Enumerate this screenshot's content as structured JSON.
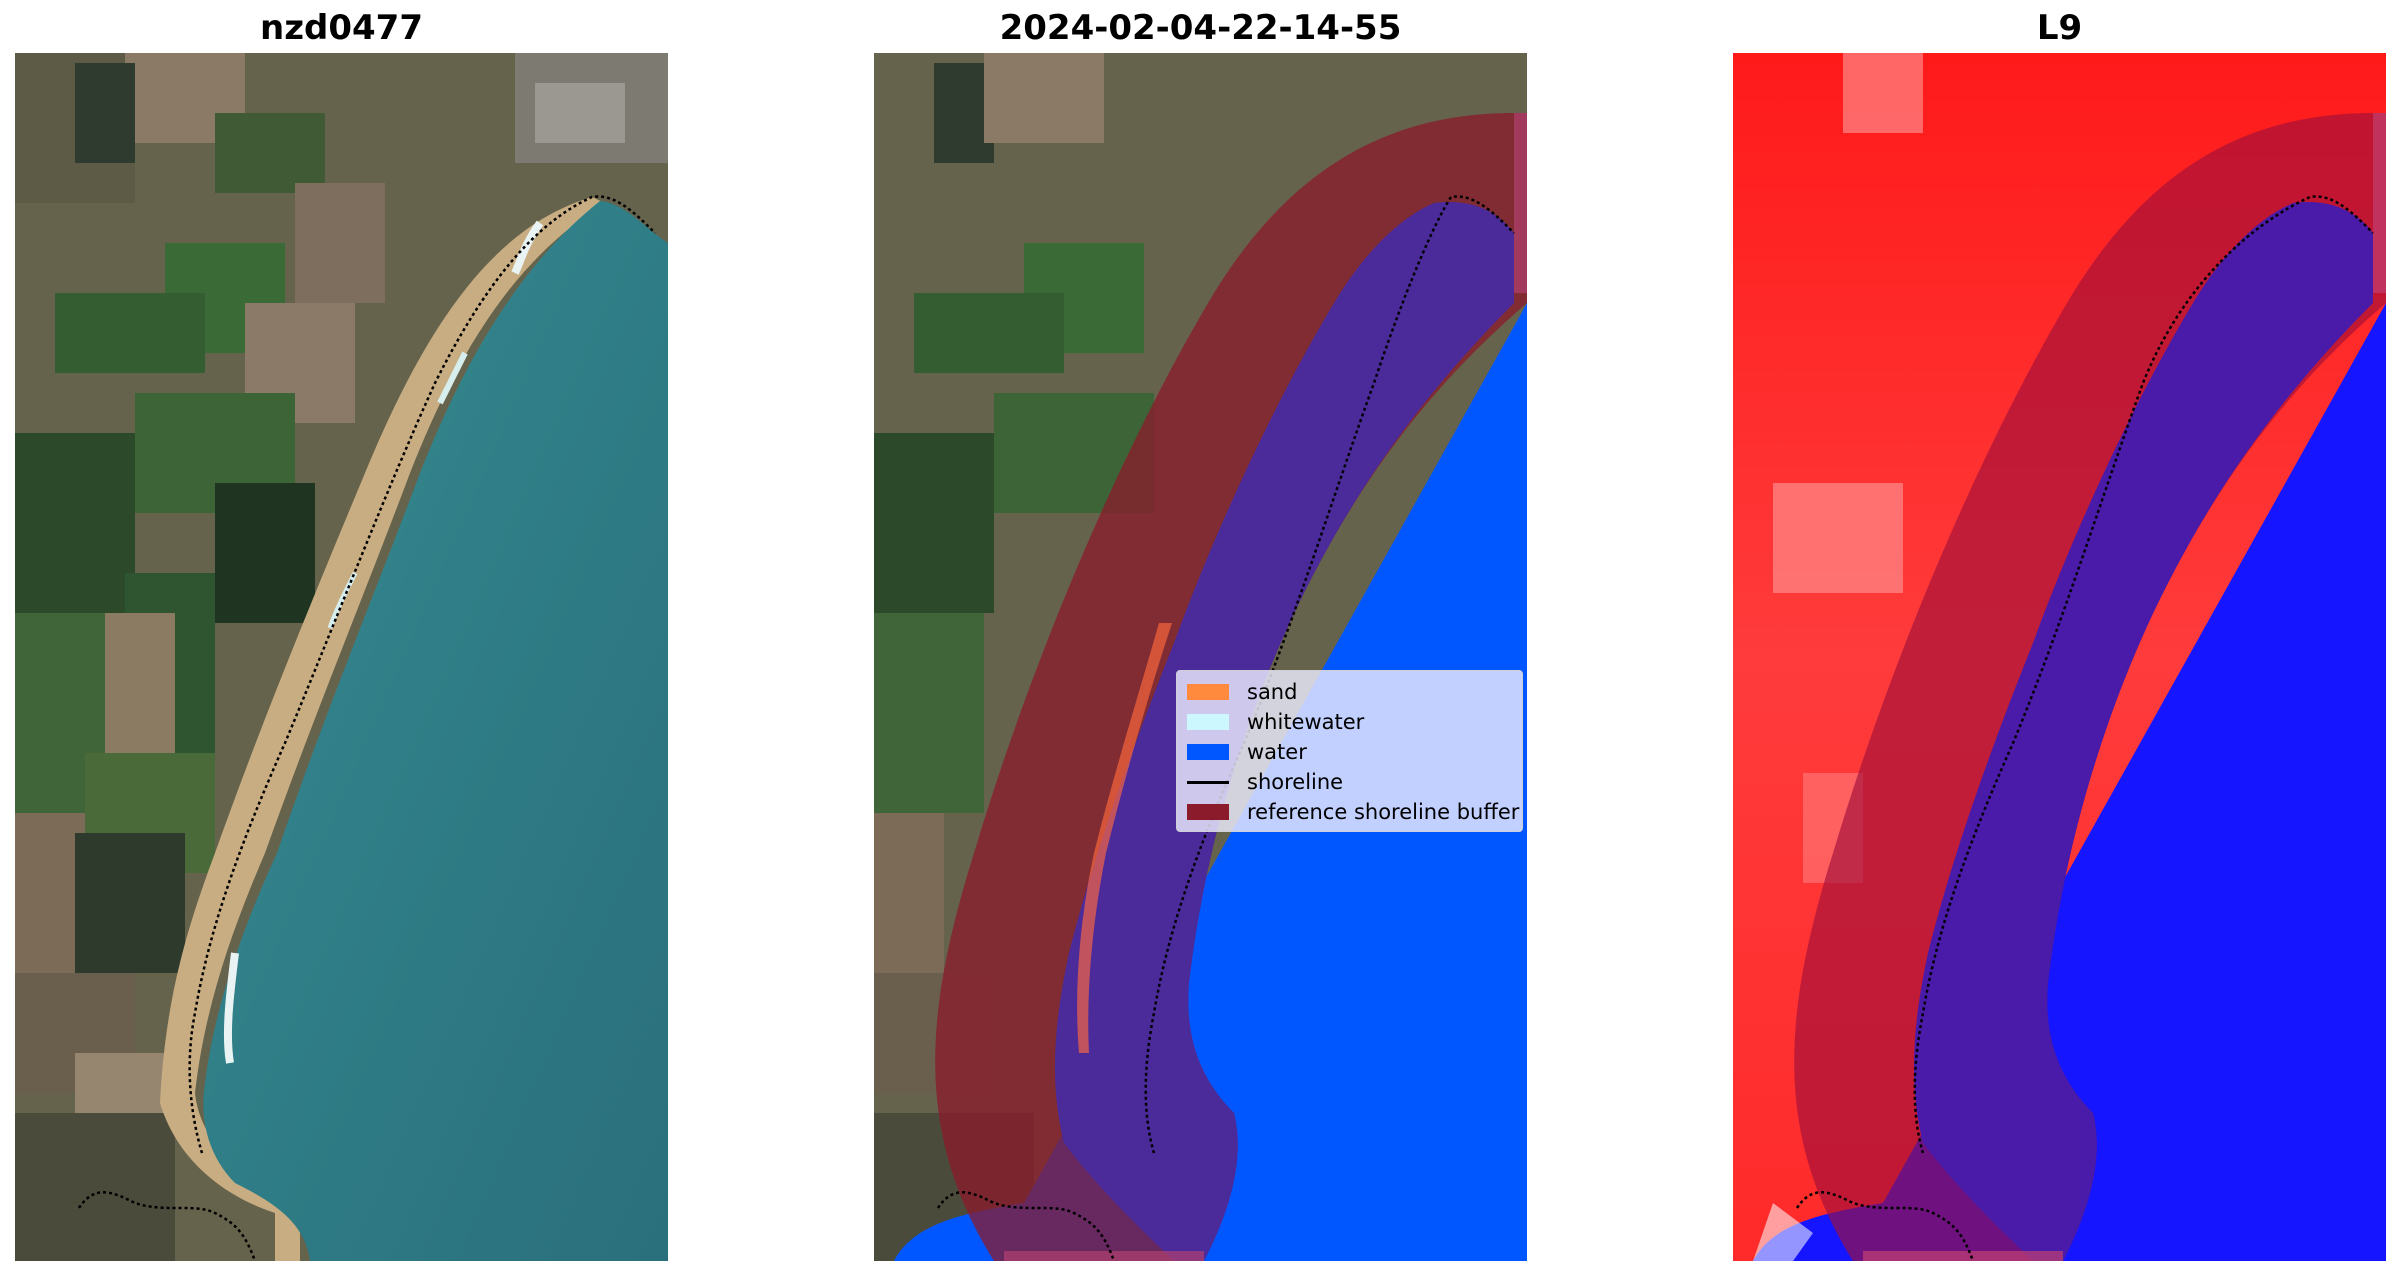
{
  "panels": [
    {
      "title": "nzd0477"
    },
    {
      "title": "2024-02-04-22-14-55"
    },
    {
      "title": "L9"
    }
  ],
  "legend": {
    "entries": [
      {
        "label": "sand",
        "color": "#ff8a3d",
        "kind": "patch"
      },
      {
        "label": "whitewater",
        "color": "#ccf7ff",
        "kind": "patch"
      },
      {
        "label": "water",
        "color": "#0057ff",
        "kind": "patch"
      },
      {
        "label": "shoreline",
        "color": "#000000",
        "kind": "line"
      },
      {
        "label": "reference shoreline buffer",
        "color": "#8b1a2b",
        "kind": "patch"
      }
    ]
  },
  "colors": {
    "land_rgb": "#5e6048",
    "sea_rgb": "#2f7d86",
    "water_class": "#0057ff",
    "buffer": "#8b1a2b",
    "classified_water_in_buffer": "#4b2a9a",
    "index_land": "#ff2020",
    "index_water": "#1515ff"
  }
}
